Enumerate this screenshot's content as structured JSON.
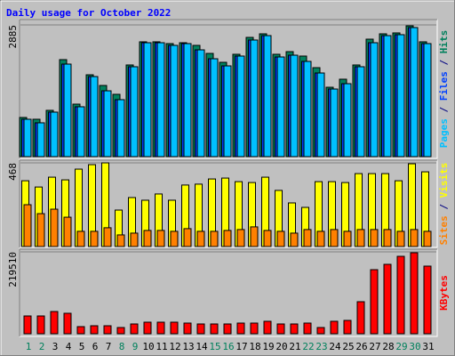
{
  "chart_data": [
    {
      "type": "bar",
      "title": "Daily usage for October 2022",
      "series": [
        {
          "name": "Pages",
          "color": "#00c0ff",
          "values": [
            819,
            741,
            975,
            2027,
            1092,
            1754,
            1442,
            1248,
            1969,
            2495,
            2495,
            2437,
            2476,
            2339,
            2144,
            1988,
            2203,
            2554,
            2651,
            2183,
            2222,
            2086,
            1832,
            1481,
            1598,
            1969,
            2495,
            2651,
            2671,
            2827,
            2476
          ]
        },
        {
          "name": "Files",
          "color": "#0040ff",
          "values": [
            819,
            741,
            975,
            2027,
            1092,
            1754,
            1442,
            1248,
            1969,
            2495,
            2495,
            2437,
            2476,
            2339,
            2144,
            1988,
            2203,
            2554,
            2651,
            2183,
            2222,
            2086,
            1832,
            1481,
            1598,
            1969,
            2495,
            2651,
            2671,
            2827,
            2476
          ]
        },
        {
          "name": "Hits",
          "color": "#00805c",
          "values": [
            858,
            819,
            1014,
            2125,
            1150,
            1793,
            1559,
            1365,
            2008,
            2515,
            2515,
            2476,
            2495,
            2437,
            2261,
            2066,
            2242,
            2612,
            2690,
            2242,
            2300,
            2203,
            1949,
            1520,
            1696,
            2008,
            2573,
            2690,
            2710,
            2865,
            2515
          ]
        }
      ],
      "legend_separator": " / ",
      "ylim": [
        0,
        2885
      ],
      "yticks": [
        2885
      ]
    },
    {
      "type": "bar",
      "series": [
        {
          "name": "Sites",
          "color": "#ff8000",
          "values": [
            234,
            184,
            209,
            164,
            85,
            85,
            105,
            65,
            75,
            90,
            90,
            85,
            100,
            85,
            85,
            90,
            95,
            110,
            90,
            85,
            75,
            95,
            85,
            95,
            85,
            95,
            95,
            95,
            85,
            95,
            85
          ]
        },
        {
          "name": "Visits",
          "color": "#ffff00",
          "values": [
            368,
            333,
            388,
            373,
            433,
            458,
            468,
            204,
            274,
            259,
            294,
            259,
            344,
            349,
            378,
            383,
            363,
            358,
            388,
            314,
            244,
            219,
            363,
            363,
            358,
            408,
            408,
            408,
            368,
            463,
            418
          ]
        }
      ],
      "legend_separator": " / ",
      "ylim": [
        0,
        468
      ],
      "yticks": [
        468
      ]
    },
    {
      "type": "bar",
      "categories": [
        "1",
        "2",
        "3",
        "4",
        "5",
        "6",
        "7",
        "8",
        "9",
        "10",
        "11",
        "12",
        "13",
        "14",
        "15",
        "16",
        "17",
        "18",
        "19",
        "20",
        "21",
        "22",
        "23",
        "24",
        "25",
        "26",
        "27",
        "28",
        "29",
        "30",
        "31"
      ],
      "category_colors": [
        "#00805c",
        "#00805c",
        "#000000",
        "#000000",
        "#000000",
        "#000000",
        "#000000",
        "#00805c",
        "#00805c",
        "#000000",
        "#000000",
        "#000000",
        "#000000",
        "#000000",
        "#00805c",
        "#00805c",
        "#000000",
        "#000000",
        "#000000",
        "#000000",
        "#000000",
        "#00805c",
        "#00805c",
        "#000000",
        "#000000",
        "#000000",
        "#000000",
        "#000000",
        "#00805c",
        "#00805c",
        "#000000"
      ],
      "series": [
        {
          "name": "KBytes",
          "color": "#ff0000",
          "values": [
            47720,
            47720,
            59650,
            54880,
            19090,
            21470,
            21470,
            16700,
            26250,
            31020,
            31020,
            31020,
            28630,
            26250,
            26250,
            26250,
            28630,
            28630,
            33400,
            26250,
            26250,
            28630,
            16700,
            33400,
            35790,
            85910,
            171790,
            186110,
            207580,
            217130,
            181330
          ]
        }
      ],
      "legend_separator": " / ",
      "ylim": [
        0,
        219510
      ],
      "yticks": [
        219510
      ]
    }
  ]
}
